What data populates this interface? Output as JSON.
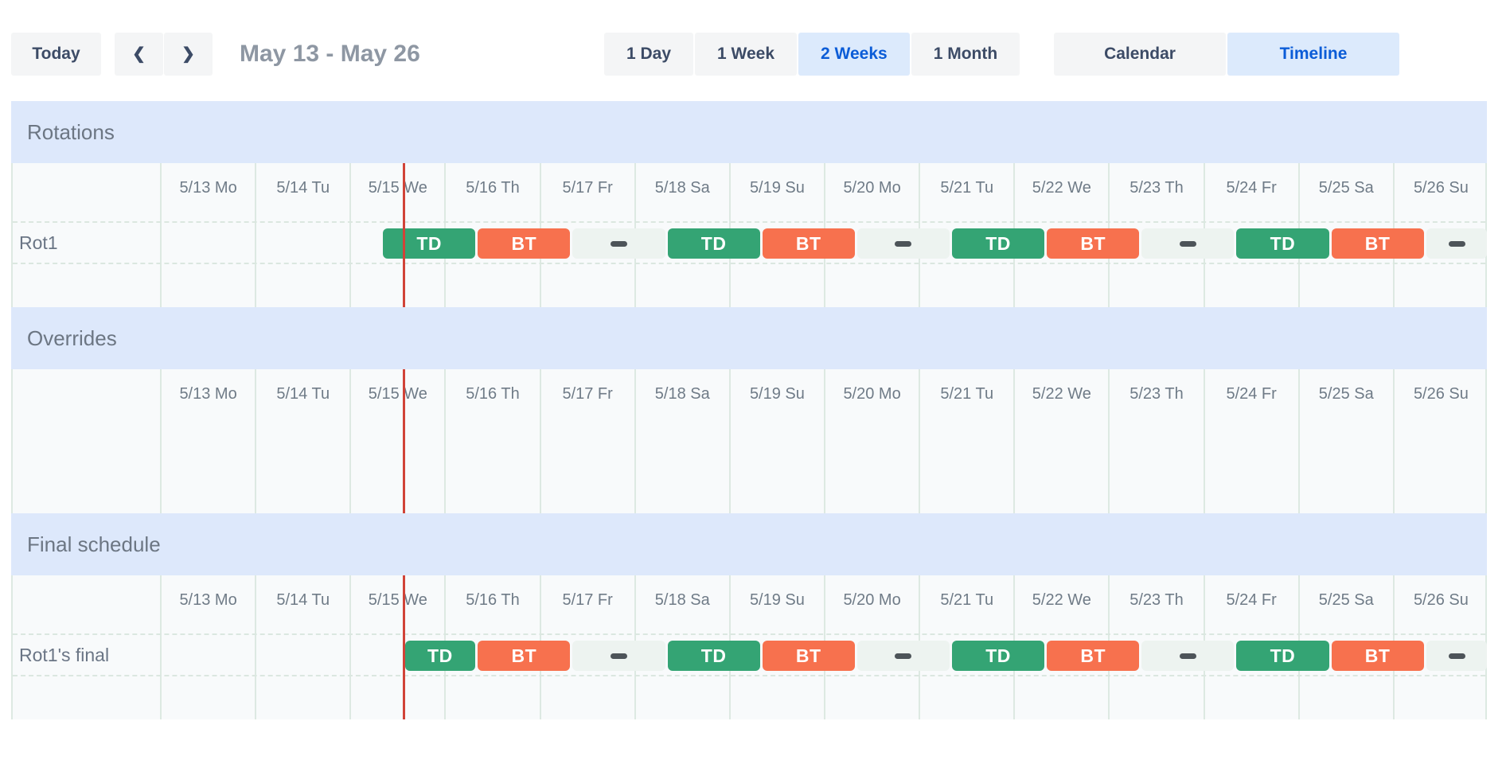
{
  "toolbar": {
    "today_label": "Today",
    "prev_icon": "❮",
    "next_icon": "❯",
    "title": "May 13 - May 26",
    "view_buttons": [
      {
        "label": "1 Day",
        "selected": false
      },
      {
        "label": "1 Week",
        "selected": false
      },
      {
        "label": "2 Weeks",
        "selected": true
      },
      {
        "label": "1 Month",
        "selected": false
      }
    ],
    "mode_buttons": [
      {
        "label": "Calendar",
        "selected": false
      },
      {
        "label": "Timeline",
        "selected": true
      }
    ]
  },
  "colors": {
    "accent_blue": "#0b5cd7",
    "selected_button_bg": "#dceafc",
    "section_band_bg": "#dde8fb",
    "shift_green": "#34a474",
    "shift_orange": "#f7714e",
    "gap_bg": "#edf3f0",
    "gap_dash": "#4d5459",
    "now_line": "#d14338"
  },
  "timeline": {
    "day_labels": [
      "5/13 Mo",
      "5/14 Tu",
      "5/15 We",
      "5/16 Th",
      "5/17 Fr",
      "5/18 Sa",
      "5/19 Su",
      "5/20 Mo",
      "5/21 Tu",
      "5/22 We",
      "5/23 Th",
      "5/24 Fr",
      "5/25 Sa",
      "5/26 Su"
    ],
    "now_day_position": 2.56,
    "sections": [
      {
        "title": "Rotations",
        "empty_rows": 1,
        "rows": [
          {
            "label": "Rot1",
            "blocks": [
              {
                "kind": "shift",
                "label": "TD",
                "color": "shift_green",
                "start": 2.33,
                "end": 3.33
              },
              {
                "kind": "shift",
                "label": "BT",
                "color": "shift_orange",
                "start": 3.33,
                "end": 4.33
              },
              {
                "kind": "gap",
                "start": 4.33,
                "end": 5.33
              },
              {
                "kind": "shift",
                "label": "TD",
                "color": "shift_green",
                "start": 5.33,
                "end": 6.33
              },
              {
                "kind": "shift",
                "label": "BT",
                "color": "shift_orange",
                "start": 6.33,
                "end": 7.33
              },
              {
                "kind": "gap",
                "start": 7.33,
                "end": 8.33
              },
              {
                "kind": "shift",
                "label": "TD",
                "color": "shift_green",
                "start": 8.33,
                "end": 9.33
              },
              {
                "kind": "shift",
                "label": "BT",
                "color": "shift_orange",
                "start": 9.33,
                "end": 10.33
              },
              {
                "kind": "gap",
                "start": 10.33,
                "end": 11.33
              },
              {
                "kind": "shift",
                "label": "TD",
                "color": "shift_green",
                "start": 11.33,
                "end": 12.33
              },
              {
                "kind": "shift",
                "label": "BT",
                "color": "shift_orange",
                "start": 12.33,
                "end": 13.33
              },
              {
                "kind": "gap",
                "start": 13.33,
                "end": 14
              }
            ]
          }
        ]
      },
      {
        "title": "Overrides",
        "empty_rows": 2,
        "rows": []
      },
      {
        "title": "Final schedule",
        "empty_rows": 1,
        "rows": [
          {
            "label": "Rot1's final",
            "blocks": [
              {
                "kind": "shift",
                "label": "TD",
                "color": "shift_green",
                "start": 2.56,
                "end": 3.33
              },
              {
                "kind": "shift",
                "label": "BT",
                "color": "shift_orange",
                "start": 3.33,
                "end": 4.33
              },
              {
                "kind": "gap",
                "start": 4.33,
                "end": 5.33
              },
              {
                "kind": "shift",
                "label": "TD",
                "color": "shift_green",
                "start": 5.33,
                "end": 6.33
              },
              {
                "kind": "shift",
                "label": "BT",
                "color": "shift_orange",
                "start": 6.33,
                "end": 7.33
              },
              {
                "kind": "gap",
                "start": 7.33,
                "end": 8.33
              },
              {
                "kind": "shift",
                "label": "TD",
                "color": "shift_green",
                "start": 8.33,
                "end": 9.33
              },
              {
                "kind": "shift",
                "label": "BT",
                "color": "shift_orange",
                "start": 9.33,
                "end": 10.33
              },
              {
                "kind": "gap",
                "start": 10.33,
                "end": 11.33
              },
              {
                "kind": "shift",
                "label": "TD",
                "color": "shift_green",
                "start": 11.33,
                "end": 12.33
              },
              {
                "kind": "shift",
                "label": "BT",
                "color": "shift_orange",
                "start": 12.33,
                "end": 13.33
              },
              {
                "kind": "gap",
                "start": 13.33,
                "end": 14
              }
            ]
          }
        ]
      }
    ]
  }
}
